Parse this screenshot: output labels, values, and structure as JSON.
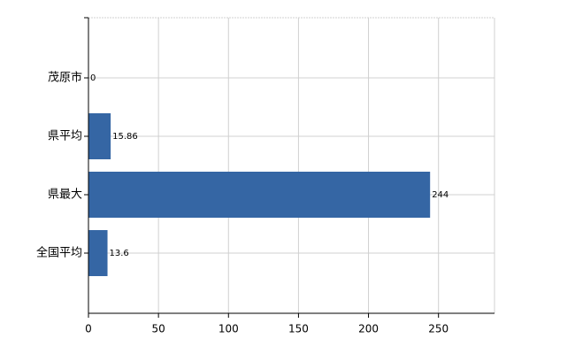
{
  "chart_data": {
    "type": "hbar",
    "categories": [
      "茂原市",
      "県平均",
      "県最大",
      "全国平均"
    ],
    "values": [
      0,
      15.86,
      244,
      13.6
    ],
    "color": "#3566a4",
    "xlim": [
      0,
      290
    ],
    "xticks": [
      0,
      50,
      100,
      150,
      200,
      250
    ],
    "grid": true
  }
}
